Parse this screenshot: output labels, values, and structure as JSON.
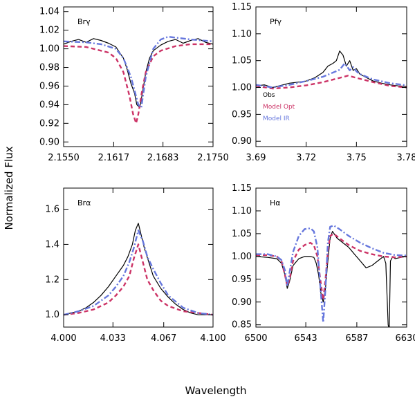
{
  "figure": {
    "ylabel": "Normalized Flux",
    "xlabel": "Wavelength"
  },
  "chart_data": [
    {
      "type": "line",
      "title": "Brγ",
      "xlim": [
        2.155,
        2.175
      ],
      "ylim": [
        0.895,
        1.045
      ],
      "xticks": [
        2.155,
        2.1617,
        2.1683,
        2.175
      ],
      "xtick_labels": [
        "2.1550",
        "2.1617",
        "2.1683",
        "2.1750"
      ],
      "yticks": [
        0.9,
        0.92,
        0.94,
        0.96,
        0.98,
        1.0,
        1.02,
        1.04
      ],
      "ytick_labels": [
        "0.90",
        "0.92",
        "0.94",
        "0.96",
        "0.98",
        "1.00",
        "1.02",
        "1.04"
      ],
      "series": [
        {
          "name": "Obs",
          "color": "#000000",
          "dash": "",
          "x": [
            2.155,
            2.156,
            2.157,
            2.158,
            2.159,
            2.16,
            2.161,
            2.162,
            2.163,
            2.1635,
            2.164,
            2.1645,
            2.1648,
            2.1652,
            2.1656,
            2.166,
            2.1665,
            2.167,
            2.168,
            2.169,
            2.17,
            2.171,
            2.172,
            2.173,
            2.174,
            2.175
          ],
          "y": [
            1.005,
            1.008,
            1.01,
            1.007,
            1.011,
            1.009,
            1.006,
            1.002,
            0.99,
            0.978,
            0.963,
            0.952,
            0.94,
            0.937,
            0.955,
            0.975,
            0.99,
            0.998,
            1.004,
            1.008,
            1.01,
            1.006,
            1.009,
            1.011,
            1.007,
            1.005
          ]
        },
        {
          "name": "Model Opt",
          "color": "#cc3366",
          "dash": "6,4",
          "x": [
            2.155,
            2.158,
            2.16,
            2.161,
            2.162,
            2.163,
            2.1638,
            2.1643,
            2.1647,
            2.165,
            2.1655,
            2.166,
            2.167,
            2.168,
            2.17,
            2.172,
            2.175
          ],
          "y": [
            1.003,
            1.002,
            0.998,
            0.996,
            0.99,
            0.975,
            0.95,
            0.93,
            0.92,
            0.93,
            0.955,
            0.975,
            0.992,
            0.998,
            1.003,
            1.005,
            1.005
          ]
        },
        {
          "name": "Model IR",
          "color": "#6677dd",
          "dash": "8,3,2,3",
          "x": [
            2.155,
            2.158,
            2.16,
            2.162,
            2.163,
            2.164,
            2.1645,
            2.165,
            2.1654,
            2.166,
            2.167,
            2.168,
            2.169,
            2.17,
            2.172,
            2.175
          ],
          "y": [
            1.008,
            1.007,
            1.005,
            1.0,
            0.99,
            0.97,
            0.955,
            0.94,
            0.937,
            0.97,
            1.0,
            1.01,
            1.013,
            1.012,
            1.01,
            1.008
          ]
        }
      ]
    },
    {
      "type": "line",
      "title": "Pfγ",
      "xlim": [
        3.69,
        3.78
      ],
      "ylim": [
        0.89,
        1.15
      ],
      "xticks": [
        3.69,
        3.72,
        3.75,
        3.78
      ],
      "xtick_labels": [
        "3.69",
        "3.72",
        "3.75",
        "3.78"
      ],
      "yticks": [
        0.9,
        0.95,
        1.0,
        1.05,
        1.1,
        1.15
      ],
      "ytick_labels": [
        "0.90",
        "0.95",
        "1.00",
        "1.05",
        "1.10",
        "1.15"
      ],
      "legend": [
        "Obs",
        "Model Opt",
        "Model IR"
      ],
      "series": [
        {
          "name": "Obs",
          "color": "#000000",
          "dash": "",
          "x": [
            3.69,
            3.695,
            3.7,
            3.705,
            3.71,
            3.715,
            3.72,
            3.725,
            3.73,
            3.733,
            3.736,
            3.738,
            3.74,
            3.742,
            3.744,
            3.746,
            3.748,
            3.75,
            3.752,
            3.755,
            3.76,
            3.765,
            3.77,
            3.775,
            3.78
          ],
          "y": [
            1.003,
            1.005,
            1.0,
            1.004,
            1.008,
            1.01,
            1.012,
            1.018,
            1.028,
            1.04,
            1.045,
            1.05,
            1.068,
            1.06,
            1.04,
            1.05,
            1.032,
            1.035,
            1.025,
            1.02,
            1.012,
            1.008,
            1.005,
            1.003,
            1.002
          ]
        },
        {
          "name": "Model Opt",
          "color": "#cc3366",
          "dash": "6,4",
          "x": [
            3.69,
            3.7,
            3.71,
            3.72,
            3.73,
            3.74,
            3.745,
            3.75,
            3.76,
            3.77,
            3.78
          ],
          "y": [
            1.003,
            0.998,
            1.0,
            1.004,
            1.01,
            1.018,
            1.022,
            1.018,
            1.01,
            1.003,
            1.0
          ]
        },
        {
          "name": "Model IR",
          "color": "#6677dd",
          "dash": "8,3,2,3",
          "x": [
            3.69,
            3.7,
            3.71,
            3.72,
            3.73,
            3.74,
            3.743,
            3.746,
            3.748,
            3.75,
            3.752,
            3.76,
            3.77,
            3.78
          ],
          "y": [
            1.005,
            1.0,
            1.005,
            1.012,
            1.02,
            1.033,
            1.045,
            1.032,
            1.038,
            1.03,
            1.025,
            1.015,
            1.008,
            1.004
          ]
        }
      ]
    },
    {
      "type": "line",
      "title": "Brα",
      "xlim": [
        4.0,
        4.1
      ],
      "ylim": [
        0.93,
        1.72
      ],
      "xticks": [
        4.0,
        4.033,
        4.067,
        4.1
      ],
      "xtick_labels": [
        "4.000",
        "4.033",
        "4.067",
        "4.100"
      ],
      "yticks": [
        1.0,
        1.2,
        1.4,
        1.6
      ],
      "ytick_labels": [
        "1.0",
        "1.2",
        "1.4",
        "1.6"
      ],
      "series": [
        {
          "name": "Obs",
          "color": "#000000",
          "dash": "",
          "x": [
            4.0,
            4.005,
            4.01,
            4.015,
            4.02,
            4.025,
            4.03,
            4.035,
            4.04,
            4.043,
            4.046,
            4.048,
            4.05,
            4.052,
            4.054,
            4.057,
            4.06,
            4.065,
            4.07,
            4.075,
            4.08,
            4.085,
            4.09,
            4.095,
            4.1
          ],
          "y": [
            1.0,
            1.01,
            1.02,
            1.04,
            1.07,
            1.11,
            1.16,
            1.22,
            1.28,
            1.33,
            1.4,
            1.48,
            1.52,
            1.45,
            1.38,
            1.3,
            1.22,
            1.15,
            1.1,
            1.06,
            1.03,
            1.01,
            1.0,
            1.0,
            1.0
          ]
        },
        {
          "name": "Model Opt",
          "color": "#cc3366",
          "dash": "6,4",
          "x": [
            4.0,
            4.01,
            4.02,
            4.03,
            4.035,
            4.04,
            4.044,
            4.047,
            4.05,
            4.053,
            4.056,
            4.06,
            4.065,
            4.07,
            4.08,
            4.09,
            4.1
          ],
          "y": [
            1.0,
            1.01,
            1.03,
            1.07,
            1.11,
            1.16,
            1.22,
            1.32,
            1.4,
            1.3,
            1.2,
            1.14,
            1.08,
            1.05,
            1.02,
            1.01,
            1.0
          ]
        },
        {
          "name": "Model IR",
          "color": "#6677dd",
          "dash": "8,3,2,3",
          "x": [
            4.0,
            4.01,
            4.02,
            4.03,
            4.035,
            4.04,
            4.044,
            4.047,
            4.05,
            4.053,
            4.056,
            4.06,
            4.065,
            4.07,
            4.08,
            4.09,
            4.1
          ],
          "y": [
            1.0,
            1.02,
            1.05,
            1.11,
            1.16,
            1.22,
            1.3,
            1.38,
            1.48,
            1.42,
            1.33,
            1.26,
            1.18,
            1.11,
            1.04,
            1.01,
            1.0
          ]
        }
      ]
    },
    {
      "type": "line",
      "title": "Hα",
      "xlim": [
        6500,
        6630
      ],
      "ylim": [
        0.845,
        1.15
      ],
      "xticks": [
        6500,
        6543,
        6587,
        6630
      ],
      "xtick_labels": [
        "6500",
        "6543",
        "6587",
        "6630"
      ],
      "yticks": [
        0.85,
        0.9,
        0.95,
        1.0,
        1.05,
        1.1,
        1.15
      ],
      "ytick_labels": [
        "0.85",
        "0.90",
        "0.95",
        "1.00",
        "1.05",
        "1.10",
        "1.15"
      ],
      "series": [
        {
          "name": "Obs",
          "color": "#000000",
          "dash": "",
          "x": [
            6500,
            6510,
            6518,
            6522,
            6525,
            6527,
            6529,
            6532,
            6537,
            6542,
            6547,
            6550,
            6552,
            6554,
            6556,
            6558,
            6560,
            6562,
            6564,
            6566,
            6570,
            6575,
            6580,
            6585,
            6590,
            6595,
            6600,
            6605,
            6610,
            6612,
            6614,
            6615,
            6616,
            6618,
            6620,
            6625,
            6630
          ],
          "y": [
            1.0,
            0.998,
            0.995,
            0.985,
            0.96,
            0.93,
            0.945,
            0.98,
            0.995,
            1.0,
            1.0,
            0.998,
            0.985,
            0.96,
            0.92,
            0.9,
            0.93,
            0.99,
            1.04,
            1.055,
            1.04,
            1.03,
            1.02,
            1.005,
            0.99,
            0.975,
            0.98,
            0.99,
            1.0,
            0.985,
            0.85,
            0.84,
            0.99,
            1.0,
            0.995,
            0.998,
            1.0
          ]
        },
        {
          "name": "Model Opt",
          "color": "#cc3366",
          "dash": "6,4",
          "x": [
            6500,
            6510,
            6518,
            6522,
            6525,
            6527,
            6529,
            6532,
            6537,
            6542,
            6547,
            6550,
            6553,
            6556,
            6558,
            6560,
            6562,
            6564,
            6567,
            6572,
            6580,
            6590,
            6600,
            6610,
            6620,
            6630
          ],
          "y": [
            1.003,
            1.003,
            1.0,
            0.99,
            0.96,
            0.935,
            0.95,
            0.99,
            1.015,
            1.025,
            1.03,
            1.025,
            1.0,
            0.94,
            0.905,
            0.95,
            1.01,
            1.045,
            1.05,
            1.04,
            1.025,
            1.012,
            1.005,
            1.0,
            0.998,
            1.0
          ]
        },
        {
          "name": "Model IR",
          "color": "#6677dd",
          "dash": "8,3,2,3",
          "x": [
            6500,
            6510,
            6518,
            6522,
            6525,
            6527,
            6529,
            6532,
            6537,
            6542,
            6547,
            6550,
            6553,
            6556,
            6558,
            6560,
            6562,
            6564,
            6567,
            6572,
            6580,
            6590,
            6600,
            6610,
            6620,
            6630
          ],
          "y": [
            1.005,
            1.005,
            1.0,
            0.992,
            0.97,
            0.935,
            0.965,
            1.01,
            1.045,
            1.06,
            1.062,
            1.055,
            1.02,
            0.92,
            0.855,
            0.93,
            1.03,
            1.065,
            1.068,
            1.06,
            1.045,
            1.03,
            1.018,
            1.008,
            1.003,
            1.002
          ]
        }
      ]
    }
  ]
}
